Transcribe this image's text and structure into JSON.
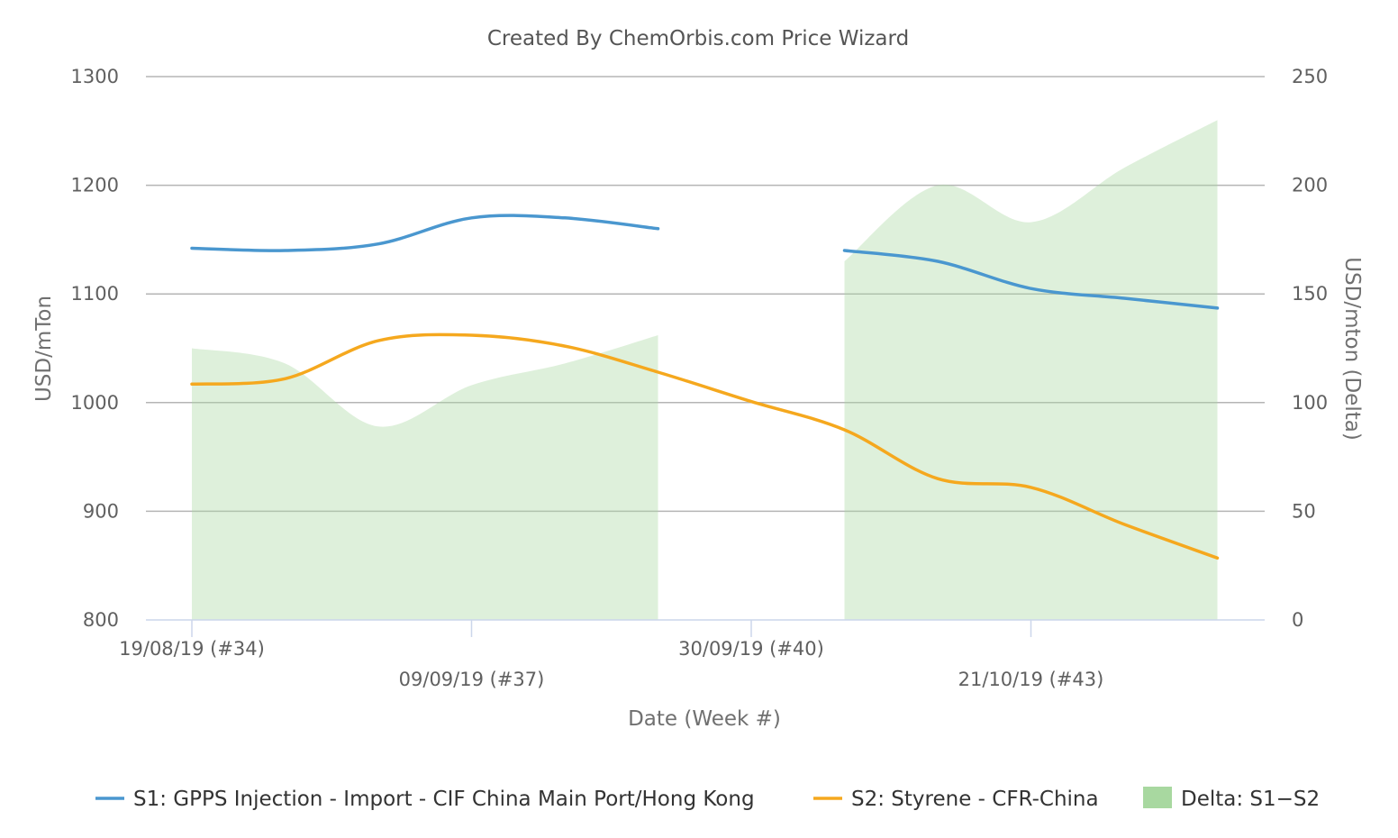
{
  "chart_data": {
    "type": "line",
    "title": "Created By ChemOrbis.com Price Wizard",
    "xlabel": "Date (Week #)",
    "ylabel": "USD/mTon",
    "y2label": "USD/mton (Delta)",
    "ylim": [
      800,
      1300
    ],
    "y2lim": [
      0,
      250
    ],
    "yticks": [
      "800",
      "900",
      "1000",
      "1100",
      "1200",
      "1300"
    ],
    "y2ticks": [
      "0",
      "50",
      "100",
      "150",
      "200",
      "250"
    ],
    "xlim": [
      34,
      46
    ],
    "xticks": [
      {
        "week": 34,
        "label": "19/08/19 (#34)"
      },
      {
        "week": 37,
        "label": "09/09/19 (#37)"
      },
      {
        "week": 40,
        "label": "30/09/19 (#40)"
      },
      {
        "week": 43,
        "label": "21/10/19 (#43)"
      }
    ],
    "grid": true,
    "legend_position": "bottom",
    "series": [
      {
        "name": "S1: GPPS Injection - Import - CIF China Main Port/Hong Kong",
        "color": "#4a97cf",
        "axis": "left",
        "kind": "line",
        "x": [
          34,
          35,
          36,
          37,
          38,
          39,
          40,
          41,
          42,
          43,
          44,
          45
        ],
        "values": [
          1142,
          1140,
          1146,
          1170,
          1170,
          1160,
          null,
          1140,
          1130,
          1105,
          1096,
          1087
        ]
      },
      {
        "name": "S2: Styrene - CFR-China",
        "color": "#f5a81e",
        "axis": "left",
        "kind": "line",
        "x": [
          34,
          35,
          36,
          37,
          38,
          39,
          40,
          41,
          42,
          43,
          44,
          45
        ],
        "values": [
          1017,
          1022,
          1057,
          1062,
          1052,
          1028,
          1001,
          975,
          930,
          922,
          888,
          857
        ]
      },
      {
        "name": "Delta: S1−S2",
        "color": "#a8d8a0",
        "axis": "right",
        "kind": "area",
        "x": [
          34,
          35,
          36,
          37,
          38,
          39,
          40,
          41,
          42,
          43,
          44,
          45
        ],
        "values": [
          125,
          118,
          89,
          108,
          118,
          131,
          null,
          165,
          200,
          183,
          208,
          230
        ]
      }
    ]
  }
}
